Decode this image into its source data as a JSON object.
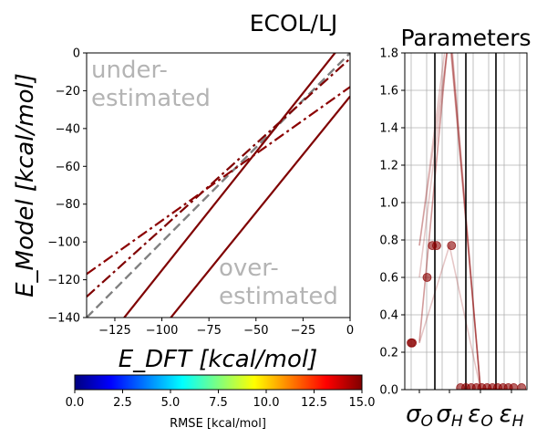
{
  "figure": {
    "title": "ECOL/LJ"
  },
  "chart_data": [
    {
      "type": "line",
      "name": "model-vs-dft",
      "title": "",
      "xlabel": "E_DFT [kcal/mol]",
      "ylabel": "E_Model [kcal/mol]",
      "xlim": [
        -140,
        0
      ],
      "ylim": [
        -140,
        0
      ],
      "xticks": [
        -125,
        -100,
        -75,
        -50,
        -25,
        0
      ],
      "yticks": [
        0,
        -20,
        -40,
        -60,
        -80,
        -100,
        -120,
        -140
      ],
      "grid": false,
      "annotations": [
        {
          "lines": [
            "under-",
            "estimated"
          ],
          "position": "top-left"
        },
        {
          "lines": [
            "over-",
            "estimated"
          ],
          "position": "bottom-right"
        }
      ],
      "reference_line": {
        "style": "dashed",
        "color": "#808080",
        "points": [
          [
            -140,
            -140
          ],
          [
            0,
            0
          ]
        ]
      },
      "series": [
        {
          "style": "solid",
          "color": "#7f0000",
          "points": [
            [
              -140,
              -165
            ],
            [
              0,
              10
            ]
          ]
        },
        {
          "style": "solid",
          "color": "#7f0000",
          "points": [
            [
              -140,
              -195
            ],
            [
              0,
              -23
            ]
          ]
        },
        {
          "style": "dashdot",
          "color": "#7f0000",
          "points": [
            [
              -140,
              -129
            ],
            [
              0,
              -3
            ]
          ]
        },
        {
          "style": "dashdot",
          "color": "#8b0000",
          "points": [
            [
              -140,
              -117
            ],
            [
              0,
              -18
            ]
          ]
        }
      ]
    },
    {
      "type": "scatter",
      "name": "parameters",
      "title": "Parameters",
      "xlabel": "",
      "ylabel": "",
      "ylim": [
        0,
        1.8
      ],
      "yticks": [
        0.0,
        0.2,
        0.4,
        0.6,
        0.8,
        1.0,
        1.2,
        1.4,
        1.6,
        1.8
      ],
      "grid": true,
      "categories": [
        "σO",
        "σH",
        "εO",
        "εH"
      ],
      "color": "#8b0000",
      "points": [
        [
          0.12,
          0.25
        ],
        [
          0.14,
          0.25
        ],
        [
          0.42,
          0.6
        ],
        [
          0.52,
          0.77
        ],
        [
          0.6,
          0.77
        ],
        [
          0.88,
          0.77
        ],
        [
          1.05,
          0.01
        ],
        [
          1.15,
          0.01
        ],
        [
          1.25,
          0.01
        ],
        [
          1.35,
          0.01
        ],
        [
          1.45,
          0.01
        ],
        [
          1.55,
          0.01
        ],
        [
          1.65,
          0.01
        ],
        [
          1.75,
          0.01
        ],
        [
          1.85,
          0.01
        ],
        [
          1.95,
          0.01
        ],
        [
          2.05,
          0.01
        ],
        [
          2.2,
          0.01
        ]
      ],
      "parameter_sets": [
        [
          0.26,
          1.95,
          0.002,
          0.0
        ],
        [
          0.25,
          1.95,
          0.005,
          0.0
        ],
        [
          0.6,
          1.9,
          0.002,
          0.0
        ],
        [
          0.77,
          2.0,
          0.004,
          0.0
        ],
        [
          0.77,
          1.9,
          0.006,
          0.0
        ],
        [
          0.25,
          0.77,
          0.005,
          0.0
        ]
      ]
    }
  ],
  "colorbar": {
    "label": "RMSE [kcal/mol]",
    "min": 0,
    "max": 15,
    "ticks": [
      "0.0",
      "2.5",
      "5.0",
      "7.5",
      "10.0",
      "12.5",
      "15.0"
    ],
    "colormap": [
      "#00007f",
      "#0000ff",
      "#007fff",
      "#00ffff",
      "#7fff7f",
      "#ffff00",
      "#ff7f00",
      "#ff0000",
      "#7f0000"
    ]
  }
}
